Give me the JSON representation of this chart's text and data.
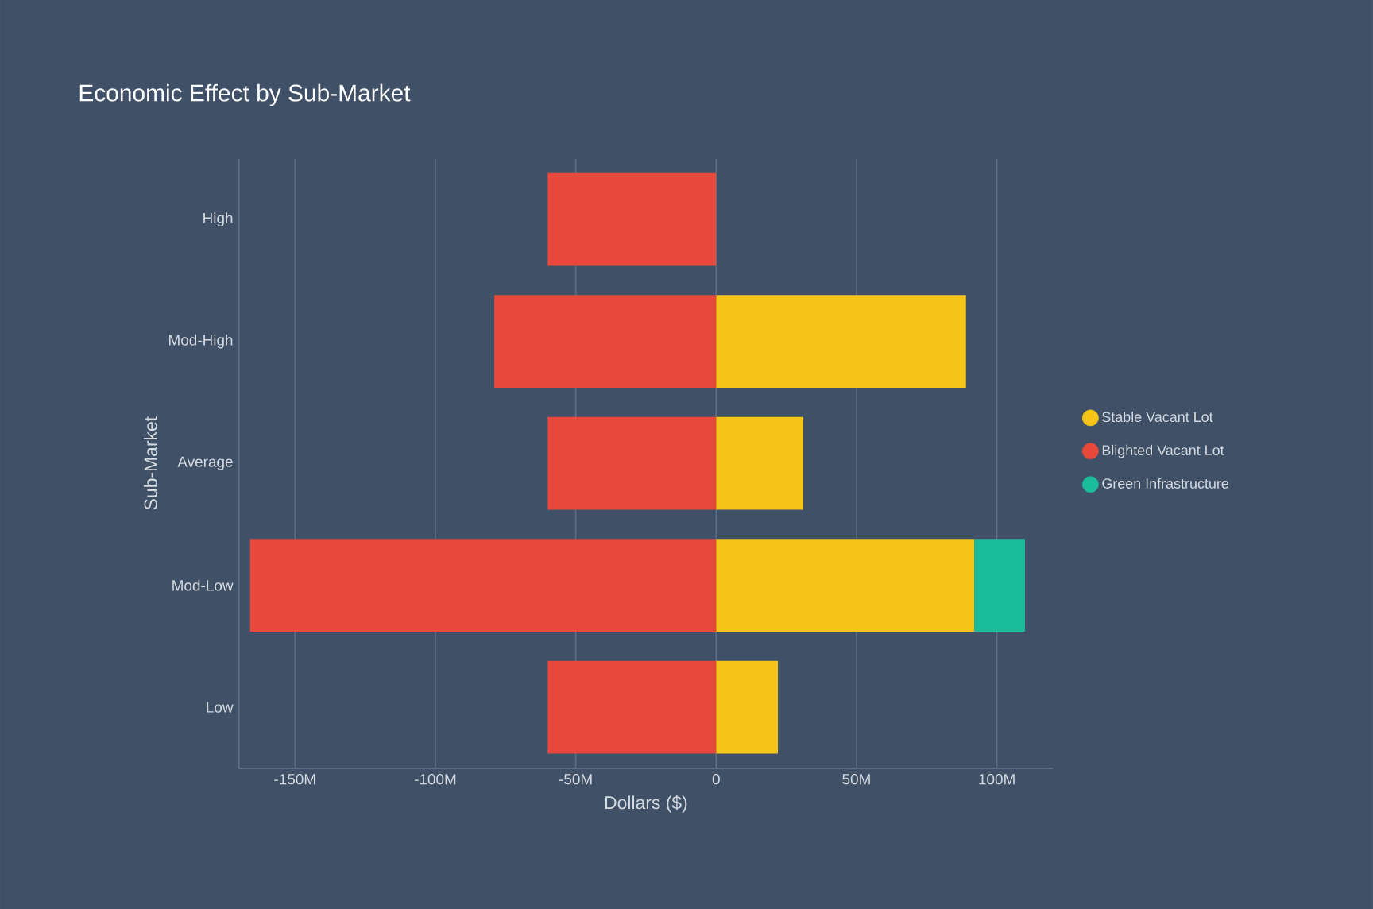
{
  "chart_data": {
    "type": "bar",
    "orientation": "horizontal",
    "stacked": true,
    "title": "Economic Effect by Sub-Market",
    "xlabel": "Dollars ($)",
    "ylabel": "Sub-Market",
    "categories": [
      "High",
      "Mod-High",
      "Average",
      "Mod-Low",
      "Low"
    ],
    "series": [
      {
        "name": "Stable Vacant Lot",
        "color": "#f5c518",
        "values": [
          null,
          89,
          31,
          92,
          22
        ]
      },
      {
        "name": "Blighted Vacant Lot",
        "color": "#e8493a",
        "values": [
          -60,
          -79,
          -60,
          -166,
          -60
        ]
      },
      {
        "name": "Green Infrastructure",
        "color": "#1abc9c",
        "values": [
          null,
          null,
          null,
          18,
          null
        ]
      }
    ],
    "xlim": [
      -170,
      120
    ],
    "xticks": [
      {
        "value": -150,
        "label": "-150M"
      },
      {
        "value": -100,
        "label": "-100M"
      },
      {
        "value": -50,
        "label": "-50M"
      },
      0,
      {
        "value": 50,
        "label": "50M"
      },
      {
        "value": 100,
        "label": "100M"
      }
    ],
    "grid": "x",
    "legend": "right"
  }
}
